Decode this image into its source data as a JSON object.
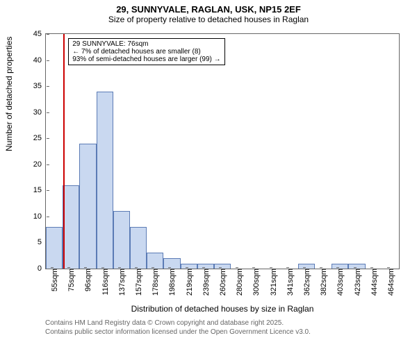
{
  "title_main": "29, SUNNYVALE, RAGLAN, USK, NP15 2EF",
  "title_sub": "Size of property relative to detached houses in Raglan",
  "ylabel": "Number of detached properties",
  "xlabel": "Distribution of detached houses by size in Raglan",
  "footer1": "Contains HM Land Registry data © Crown copyright and database right 2025.",
  "footer2": "Contains public sector information licensed under the Open Government Licence v3.0.",
  "chart": {
    "type": "histogram",
    "ylim": [
      0,
      45
    ],
    "ytick_step": 5,
    "categories": [
      "55sqm",
      "75sqm",
      "96sqm",
      "116sqm",
      "137sqm",
      "157sqm",
      "178sqm",
      "198sqm",
      "219sqm",
      "239sqm",
      "260sqm",
      "280sqm",
      "300sqm",
      "321sqm",
      "341sqm",
      "362sqm",
      "382sqm",
      "403sqm",
      "423sqm",
      "444sqm",
      "464sqm"
    ],
    "values": [
      8,
      16,
      24,
      34,
      11,
      8,
      3,
      2,
      1,
      1,
      1,
      0,
      0,
      0,
      0,
      1,
      0,
      1,
      1,
      0,
      0
    ],
    "bar_fill": "#c9d8f0",
    "bar_stroke": "#5b7bb5",
    "background_color": "#ffffff",
    "marker": {
      "position_index": 1,
      "color": "#cc0000",
      "label1": "29 SUNNYVALE: 76sqm",
      "label2": "← 7% of detached houses are smaller (8)",
      "label3": "93% of semi-detached houses are larger (99) →"
    }
  }
}
